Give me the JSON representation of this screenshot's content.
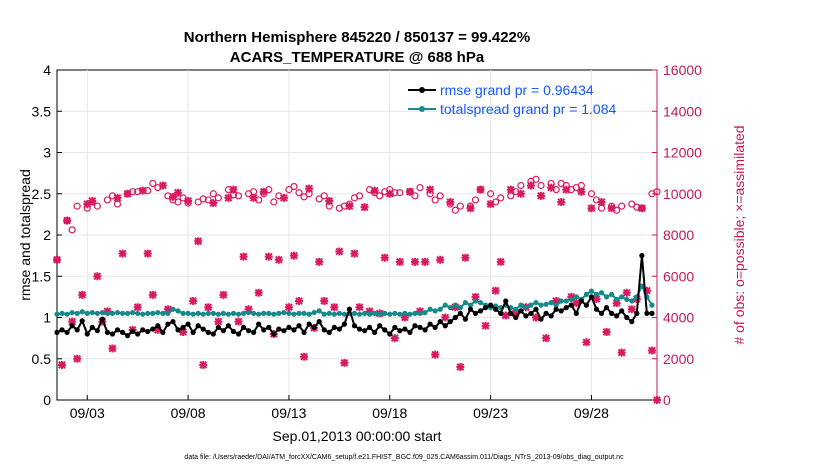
{
  "chart_data": {
    "type": "line",
    "title_line1": "Northern Hemisphere 845220 / 850137 = 99.422%",
    "title_line2": "ACARS_TEMPERATURE @ 688 hPa",
    "xlabel": "Sep.01,2013 00:00:00 start",
    "ylabel_left": "rmse and totalspread",
    "ylabel_right": "# of obs: o=possible; ×=assimilated",
    "xlim": [
      1.5,
      31.25
    ],
    "ylim_left": [
      0,
      4
    ],
    "ylim_right": [
      0,
      16000
    ],
    "x_ticks": [
      3,
      8,
      13,
      18,
      23,
      28
    ],
    "x_tick_labels": [
      "09/03",
      "09/08",
      "09/13",
      "09/18",
      "09/23",
      "09/28"
    ],
    "y_left_ticks": [
      0,
      0.5,
      1,
      1.5,
      2,
      2.5,
      3,
      3.5,
      4
    ],
    "y_left_tick_labels": [
      "0",
      "0.5",
      "1",
      "1.5",
      "2",
      "2.5",
      "3",
      "3.5",
      "4"
    ],
    "y_right_ticks": [
      0,
      2000,
      4000,
      6000,
      8000,
      10000,
      12000,
      14000,
      16000
    ],
    "y_right_tick_labels": [
      "0",
      "2000",
      "4000",
      "6000",
      "8000",
      "10000",
      "12000",
      "14000",
      "16000"
    ],
    "legend": [
      {
        "name": "rmse grand pr = 0.96434",
        "color": "#000000"
      },
      {
        "name": "totalspread grand pr = 1.084",
        "color": "#168a8a"
      }
    ],
    "footnote": "data file: /Users/raeder/DAI/ATM_forcXX/CAM6_setup/f.e21.FHIST_BGC.f09_025.CAM6assim.011/Diags_NTrS_2013-09/obs_diag_output.nc",
    "colors": {
      "rmse": "#000000",
      "spread": "#168a8a",
      "obs": "#d81b60",
      "right_axis": "#c2185b"
    },
    "series": [
      {
        "name": "rmse",
        "x": [
          1.5,
          1.75,
          2.0,
          2.25,
          2.5,
          2.75,
          3.0,
          3.25,
          3.5,
          3.75,
          4.0,
          4.25,
          4.5,
          4.75,
          5.0,
          5.25,
          5.5,
          5.75,
          6.0,
          6.25,
          6.5,
          6.75,
          7.0,
          7.25,
          7.5,
          7.75,
          8.0,
          8.25,
          8.5,
          8.75,
          9.0,
          9.25,
          9.5,
          9.75,
          10.0,
          10.25,
          10.5,
          10.75,
          11.0,
          11.25,
          11.5,
          11.75,
          12.0,
          12.25,
          12.5,
          12.75,
          13.0,
          13.25,
          13.5,
          13.75,
          14.0,
          14.25,
          14.5,
          14.75,
          15.0,
          15.25,
          15.5,
          15.75,
          16.0,
          16.25,
          16.5,
          16.75,
          17.0,
          17.25,
          17.5,
          17.75,
          18.0,
          18.25,
          18.5,
          18.75,
          19.0,
          19.25,
          19.5,
          19.75,
          20.0,
          20.25,
          20.5,
          20.75,
          21.0,
          21.25,
          21.5,
          21.75,
          22.0,
          22.25,
          22.5,
          22.75,
          23.0,
          23.25,
          23.5,
          23.75,
          24.0,
          24.25,
          24.5,
          24.75,
          25.0,
          25.25,
          25.5,
          25.75,
          26.0,
          26.25,
          26.5,
          26.75,
          27.0,
          27.25,
          27.5,
          27.75,
          28.0,
          28.25,
          28.5,
          28.75,
          29.0,
          29.25,
          29.5,
          29.75,
          30.0,
          30.25,
          30.5,
          30.75,
          31.0
        ],
        "values": [
          0.82,
          0.85,
          0.82,
          0.9,
          0.85,
          0.96,
          0.8,
          0.88,
          0.84,
          0.98,
          0.82,
          0.8,
          0.85,
          0.82,
          0.78,
          0.83,
          0.8,
          0.85,
          0.83,
          0.86,
          0.9,
          0.82,
          0.92,
          0.95,
          0.85,
          0.88,
          0.92,
          0.82,
          0.9,
          0.86,
          0.82,
          0.8,
          0.88,
          0.84,
          0.9,
          0.83,
          0.8,
          0.88,
          0.84,
          0.82,
          0.92,
          0.85,
          0.88,
          0.8,
          0.86,
          0.84,
          0.88,
          0.85,
          0.9,
          0.82,
          0.92,
          0.88,
          0.95,
          0.85,
          0.82,
          0.88,
          0.86,
          0.92,
          1.1,
          0.9,
          0.86,
          0.84,
          0.88,
          0.82,
          0.9,
          0.85,
          0.8,
          0.88,
          0.84,
          0.86,
          0.82,
          0.9,
          0.88,
          0.85,
          0.92,
          0.88,
          0.95,
          0.9,
          0.95,
          1.0,
          1.05,
          0.98,
          1.1,
          1.05,
          1.08,
          1.12,
          1.15,
          1.1,
          1.05,
          1.2,
          1.05,
          1.0,
          1.08,
          1.02,
          1.05,
          1.1,
          0.98,
          1.05,
          1.02,
          1.1,
          1.08,
          1.12,
          1.15,
          1.05,
          1.2,
          1.15,
          1.25,
          1.1,
          1.05,
          1.12,
          1.05,
          1.02,
          1.08,
          1.0,
          0.95,
          1.05,
          1.75,
          1.05,
          1.05
        ],
        "color": "#000000"
      },
      {
        "name": "totalspread",
        "x": [
          1.5,
          1.75,
          2.0,
          2.25,
          2.5,
          2.75,
          3.0,
          3.25,
          3.5,
          3.75,
          4.0,
          4.25,
          4.5,
          4.75,
          5.0,
          5.25,
          5.5,
          5.75,
          6.0,
          6.25,
          6.5,
          6.75,
          7.0,
          7.25,
          7.5,
          7.75,
          8.0,
          8.25,
          8.5,
          8.75,
          9.0,
          9.25,
          9.5,
          9.75,
          10.0,
          10.25,
          10.5,
          10.75,
          11.0,
          11.25,
          11.5,
          11.75,
          12.0,
          12.25,
          12.5,
          12.75,
          13.0,
          13.25,
          13.5,
          13.75,
          14.0,
          14.25,
          14.5,
          14.75,
          15.0,
          15.25,
          15.5,
          15.75,
          16.0,
          16.25,
          16.5,
          16.75,
          17.0,
          17.25,
          17.5,
          17.75,
          18.0,
          18.25,
          18.5,
          18.75,
          19.0,
          19.25,
          19.5,
          19.75,
          20.0,
          20.25,
          20.5,
          20.75,
          21.0,
          21.25,
          21.5,
          21.75,
          22.0,
          22.25,
          22.5,
          22.75,
          23.0,
          23.25,
          23.5,
          23.75,
          24.0,
          24.25,
          24.5,
          24.75,
          25.0,
          25.25,
          25.5,
          25.75,
          26.0,
          26.25,
          26.5,
          26.75,
          27.0,
          27.25,
          27.5,
          27.75,
          28.0,
          28.25,
          28.5,
          28.75,
          29.0,
          29.25,
          29.5,
          29.75,
          30.0,
          30.25,
          30.5,
          30.75,
          31.0
        ],
        "values": [
          1.04,
          1.05,
          1.04,
          1.06,
          1.05,
          1.07,
          1.05,
          1.06,
          1.05,
          1.06,
          1.05,
          1.05,
          1.06,
          1.05,
          1.05,
          1.06,
          1.05,
          1.04,
          1.05,
          1.05,
          1.06,
          1.05,
          1.05,
          1.1,
          1.08,
          1.05,
          1.05,
          1.04,
          1.05,
          1.04,
          1.05,
          1.05,
          1.04,
          1.05,
          1.04,
          1.05,
          1.04,
          1.05,
          1.06,
          1.05,
          1.04,
          1.05,
          1.05,
          1.04,
          1.05,
          1.06,
          1.05,
          1.04,
          1.05,
          1.05,
          1.04,
          1.06,
          1.08,
          1.04,
          1.05,
          1.04,
          1.05,
          1.04,
          1.05,
          1.05,
          1.04,
          1.05,
          1.04,
          1.05,
          1.04,
          1.05,
          1.04,
          1.05,
          1.04,
          1.05,
          1.04,
          1.05,
          1.05,
          1.06,
          1.1,
          1.08,
          1.1,
          1.15,
          1.12,
          1.15,
          1.12,
          1.18,
          1.15,
          1.2,
          1.18,
          1.15,
          1.12,
          1.14,
          1.12,
          1.15,
          1.12,
          1.1,
          1.15,
          1.12,
          1.15,
          1.18,
          1.15,
          1.16,
          1.18,
          1.15,
          1.2,
          1.2,
          1.22,
          1.25,
          1.22,
          1.28,
          1.32,
          1.28,
          1.3,
          1.25,
          1.28,
          1.22,
          1.25,
          1.22,
          1.2,
          1.25,
          1.38,
          1.25,
          1.15
        ],
        "color": "#168a8a"
      },
      {
        "name": "obs_possible",
        "x": [
          1.5,
          2.0,
          2.25,
          2.5,
          3.0,
          3.25,
          3.5,
          4.0,
          4.25,
          4.5,
          5.0,
          5.25,
          5.5,
          6.0,
          6.25,
          6.5,
          7.0,
          7.25,
          7.5,
          7.75,
          8.0,
          8.5,
          8.75,
          9.0,
          9.25,
          9.5,
          10.0,
          10.25,
          10.5,
          11.0,
          11.25,
          11.5,
          11.75,
          12.0,
          12.25,
          12.5,
          13.0,
          13.25,
          13.5,
          13.75,
          14.0,
          14.5,
          14.75,
          15.0,
          15.5,
          15.75,
          16.0,
          16.25,
          16.5,
          17.0,
          17.25,
          17.5,
          17.75,
          18.0,
          18.25,
          18.5,
          19.0,
          19.25,
          19.5,
          20.0,
          20.25,
          20.5,
          21.0,
          21.25,
          21.5,
          22.0,
          22.25,
          22.5,
          23.0,
          23.25,
          23.5,
          24.0,
          24.25,
          24.5,
          25.0,
          25.25,
          25.5,
          26.0,
          26.25,
          26.5,
          26.75,
          27.0,
          27.25,
          27.5,
          28.0,
          28.25,
          28.5,
          29.0,
          29.25,
          29.5,
          30.0,
          30.25,
          30.5,
          31.0,
          31.25
        ],
        "values": [
          6800,
          8700,
          8250,
          9400,
          9300,
          9600,
          9400,
          9700,
          9900,
          9500,
          10000,
          10100,
          10100,
          10150,
          10500,
          10300,
          9900,
          9700,
          9600,
          9800,
          9550,
          9600,
          9750,
          9700,
          10000,
          9800,
          10200,
          9950,
          9900,
          10000,
          10100,
          9700,
          10000,
          10200,
          9600,
          9900,
          10200,
          10350,
          10050,
          9850,
          10000,
          9750,
          9900,
          9400,
          9300,
          9400,
          9500,
          9800,
          9900,
          10200,
          10050,
          9900,
          10100,
          10200,
          10050,
          10050,
          10100,
          9900,
          10300,
          10000,
          9700,
          9900,
          9500,
          9200,
          9400,
          9400,
          9700,
          10200,
          10000,
          9600,
          9800,
          9900,
          10100,
          10400,
          10600,
          10700,
          10400,
          10500,
          10200,
          10500,
          10400,
          10200,
          10300,
          10400,
          10000,
          9700,
          9300,
          9400,
          9200,
          9400,
          9500,
          9350,
          9300,
          10000,
          10100
        ],
        "color": "#d81b60"
      },
      {
        "name": "obs_assimilated",
        "x": [
          1.5,
          1.75,
          2.0,
          2.25,
          2.5,
          2.75,
          3.0,
          3.25,
          3.5,
          3.75,
          4.0,
          4.25,
          4.5,
          4.75,
          5.0,
          5.25,
          5.5,
          5.75,
          6.0,
          6.25,
          6.5,
          6.75,
          7.0,
          7.25,
          7.5,
          7.75,
          8.0,
          8.25,
          8.5,
          8.75,
          9.0,
          9.25,
          9.5,
          9.75,
          10.0,
          10.25,
          10.5,
          10.75,
          11.0,
          11.25,
          11.5,
          11.75,
          12.0,
          12.25,
          12.5,
          12.75,
          13.0,
          13.25,
          13.5,
          13.75,
          14.0,
          14.25,
          14.5,
          14.75,
          15.0,
          15.25,
          15.5,
          15.75,
          16.0,
          16.25,
          16.5,
          16.75,
          17.0,
          17.25,
          17.5,
          17.75,
          18.0,
          18.25,
          18.5,
          18.75,
          19.0,
          19.25,
          19.5,
          19.75,
          20.0,
          20.25,
          20.5,
          20.75,
          21.0,
          21.25,
          21.5,
          21.75,
          22.0,
          22.25,
          22.5,
          22.75,
          23.0,
          23.25,
          23.5,
          23.75,
          24.0,
          24.25,
          24.5,
          24.75,
          25.0,
          25.25,
          25.5,
          25.75,
          26.0,
          26.25,
          26.5,
          26.75,
          27.0,
          27.25,
          27.5,
          27.75,
          28.0,
          28.25,
          28.5,
          28.75,
          29.0,
          29.25,
          29.5,
          29.75,
          30.0,
          30.25,
          30.5,
          30.75,
          31.0,
          31.25
        ],
        "values": [
          6800,
          1700,
          8700,
          3800,
          2000,
          5100,
          9500,
          9650,
          6000,
          3800,
          4300,
          2500,
          9800,
          7100,
          10000,
          3400,
          4500,
          10150,
          7100,
          5100,
          3400,
          10400,
          4400,
          9850,
          10050,
          3300,
          9650,
          4800,
          7700,
          1700,
          4500,
          9550,
          3800,
          5100,
          9800,
          10200,
          3800,
          6950,
          4400,
          9800,
          5200,
          10100,
          6950,
          3200,
          6800,
          9800,
          4500,
          7000,
          4800,
          2100,
          10250,
          3500,
          6700,
          4800,
          9650,
          4500,
          7200,
          1800,
          9400,
          7100,
          4500,
          9350,
          4300,
          10150,
          4200,
          6900,
          10000,
          3000,
          6700,
          4000,
          10100,
          6700,
          4300,
          6700,
          10200,
          2200,
          6800,
          4000,
          9600,
          4500,
          1600,
          6900,
          9300,
          5000,
          10200,
          3600,
          9500,
          5300,
          6700,
          4100,
          10200,
          4200,
          10000,
          4500,
          10400,
          4000,
          9900,
          3000,
          10300,
          4800,
          9600,
          10200,
          5000,
          4700,
          10100,
          2800,
          9300,
          4900,
          9600,
          3300,
          9300,
          4700,
          2300,
          5200,
          4400,
          4900,
          9300,
          5300,
          2400,
          0
        ],
        "color": "#d81b60"
      }
    ]
  }
}
